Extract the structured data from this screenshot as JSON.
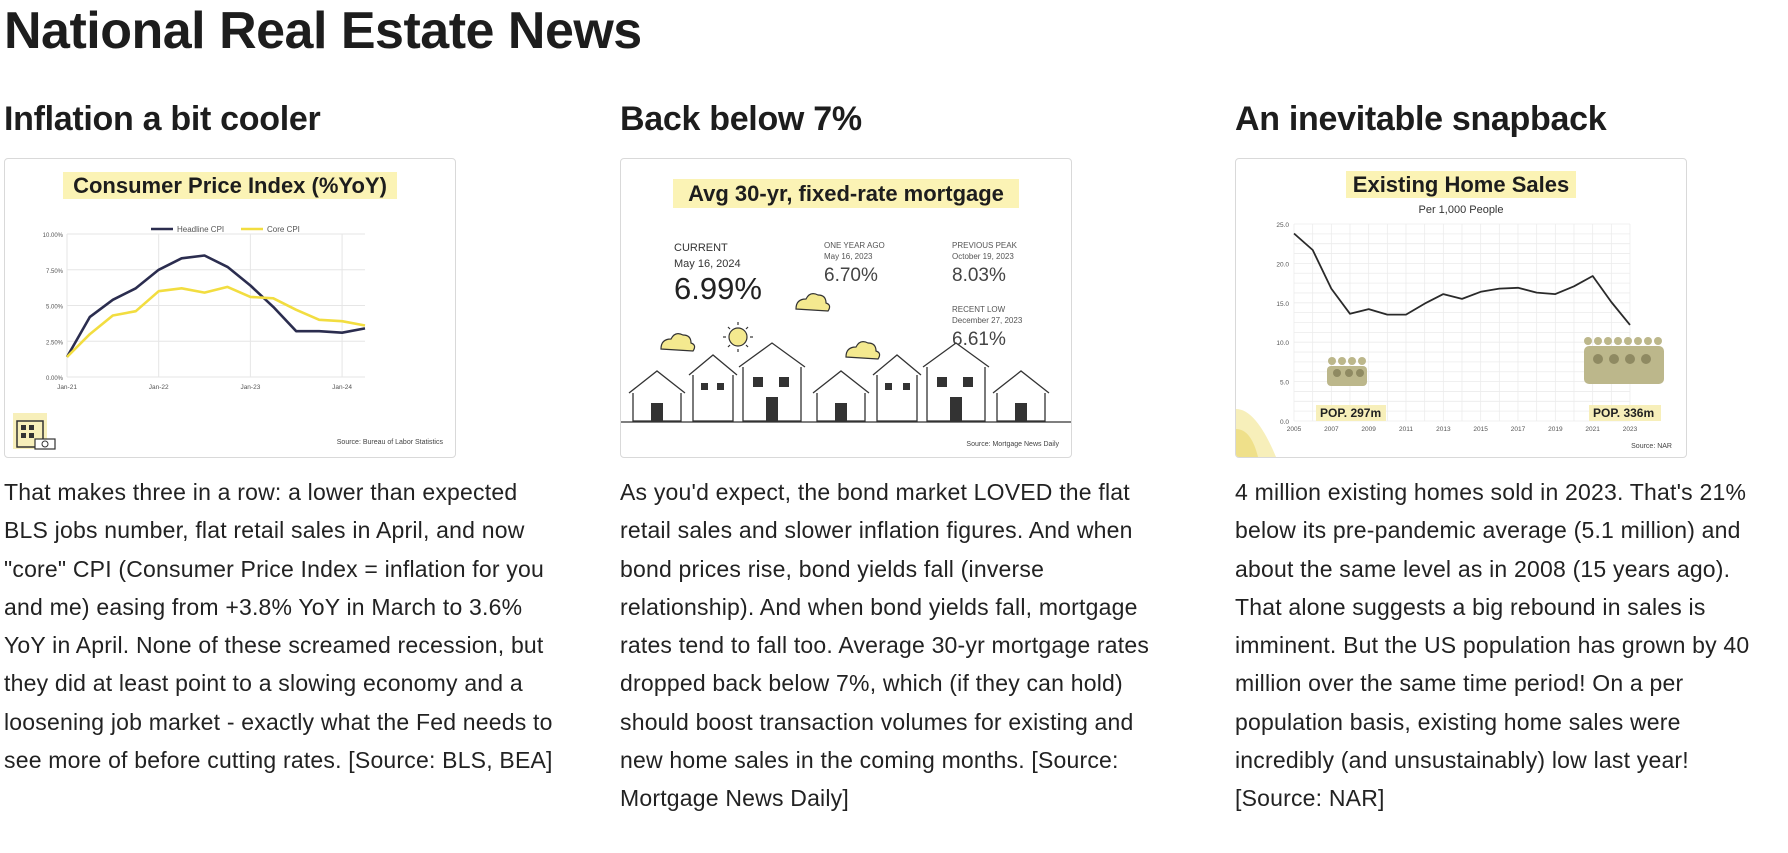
{
  "page": {
    "title": "National Real Estate News"
  },
  "sections": [
    {
      "heading": "Inflation a bit cooler",
      "card": {
        "title": "Consumer Price Index (%YoY)",
        "legend": [
          "Headline CPI",
          "Core CPI"
        ],
        "source": "Source: Bureau of Labor Statistics"
      },
      "body": "That makes three in a row: a lower than expected BLS jobs number, flat retail sales in April, and now \"core\" CPI (Consumer Price Index = inflation for you and me) easing from +3.8% YoY in March to 3.6% YoY in April. None of these screamed recession, but they did at least point to a slowing economy and a loosening job market - exactly what the Fed needs to see more of before cutting rates. [Source: BLS, BEA]"
    },
    {
      "heading": "Back below 7%",
      "card": {
        "title": "Avg 30-yr, fixed-rate mortgage",
        "current_label": "CURRENT",
        "current_date": "May 16, 2024",
        "current_value": "6.99%",
        "year_ago_label": "ONE YEAR AGO",
        "year_ago_date": "May 16, 2023",
        "year_ago_value": "6.70%",
        "peak_label": "PREVIOUS PEAK",
        "peak_date": "October 19, 2023",
        "peak_value": "8.03%",
        "low_label": "RECENT LOW",
        "low_date": "December 27, 2023",
        "low_value": "6.61%",
        "source": "Source: Mortgage News Daily"
      },
      "body": "As you'd expect, the bond market LOVED the flat retail sales and slower inflation figures. And when bond prices rise, bond yields fall (inverse relationship). And when bond yields fall, mortgage rates tend to fall too. Average 30-yr mortgage rates dropped back below 7%, which (if they can hold) should boost transaction volumes for existing and new home sales in the coming months. [Source: Mortgage News Daily]"
    },
    {
      "heading": "An inevitable snapback",
      "card": {
        "title": "Existing Home Sales",
        "subtitle": "Per 1,000 People",
        "pop_left": "POP. 297m",
        "pop_right": "POP. 336m",
        "source": "Source: NAR"
      },
      "body": "4 million existing homes sold in 2023. That's 21% below its pre-pandemic average (5.1 million) and about the same level as in 2008 (15 years ago). That alone suggests a big rebound in sales is imminent. But the US population has grown by 40 million over the same time period! On a per population basis, existing home sales were incredibly (and unsustainably) low last year! [Source: NAR]"
    }
  ],
  "chart_data": [
    {
      "type": "line",
      "title": "Consumer Price Index (%YoY)",
      "x": [
        "Jan-21",
        "Apr-21",
        "Jul-21",
        "Oct-21",
        "Jan-22",
        "Apr-22",
        "Jul-22",
        "Oct-22",
        "Jan-23",
        "Apr-23",
        "Jul-23",
        "Oct-23",
        "Jan-24",
        "Apr-24"
      ],
      "x_ticks": [
        "Jan-21",
        "Jan-22",
        "Jan-23",
        "Jan-24"
      ],
      "y_ticks": [
        "0.00%",
        "2.50%",
        "5.00%",
        "7.50%",
        "10.00%"
      ],
      "ylim": [
        0,
        10
      ],
      "series": [
        {
          "name": "Headline CPI",
          "color": "#2b2d4f",
          "values": [
            1.4,
            4.2,
            5.4,
            6.2,
            7.5,
            8.3,
            8.5,
            7.7,
            6.4,
            4.9,
            3.2,
            3.2,
            3.1,
            3.4
          ]
        },
        {
          "name": "Core CPI",
          "color": "#f2dd40",
          "values": [
            1.4,
            3.0,
            4.3,
            4.6,
            6.0,
            6.2,
            5.9,
            6.3,
            5.6,
            5.5,
            4.7,
            4.0,
            3.9,
            3.6
          ]
        }
      ],
      "source": "Source: Bureau of Labor Statistics"
    },
    {
      "type": "line",
      "title": "Existing Home Sales",
      "subtitle": "Per 1,000 People",
      "x": [
        2005,
        2006,
        2007,
        2008,
        2009,
        2010,
        2011,
        2012,
        2013,
        2014,
        2015,
        2016,
        2017,
        2018,
        2019,
        2020,
        2021,
        2022,
        2023
      ],
      "x_ticks": [
        "2005",
        "2007",
        "2009",
        "2011",
        "2013",
        "2015",
        "2017",
        "2019",
        "2021",
        "2023"
      ],
      "y_ticks": [
        "0.0",
        "5.0",
        "10.0",
        "15.0",
        "20.0",
        "25.0"
      ],
      "ylim": [
        0,
        25
      ],
      "series": [
        {
          "name": "",
          "color": "#2a2a2a",
          "values": [
            23.8,
            21.7,
            16.8,
            13.6,
            14.2,
            13.5,
            13.5,
            14.9,
            16.1,
            15.5,
            16.4,
            16.8,
            16.9,
            16.3,
            16.1,
            17.1,
            18.4,
            15.1,
            12.2
          ]
        }
      ],
      "source": "Source: NAR"
    }
  ]
}
